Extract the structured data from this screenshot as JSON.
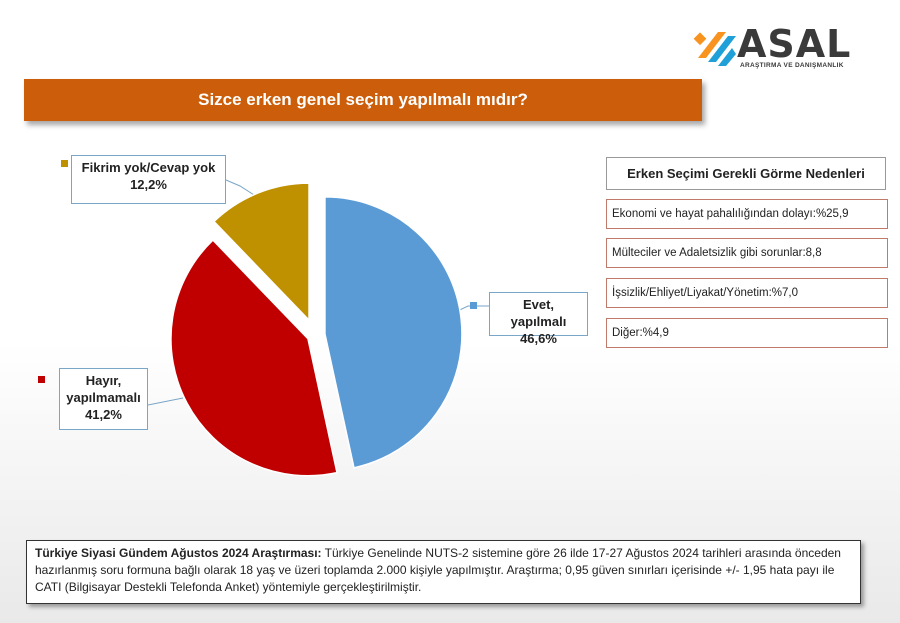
{
  "logo": {
    "word": "ASAL",
    "subtitle": "ARAŞTIRMA VE DANIŞMANLIK"
  },
  "question": "Sizce erken genel seçim yapılmalı mıdır?",
  "colors": {
    "evet": "#5b9bd5",
    "hayir": "#c00000",
    "fikrim": "#bf9000",
    "banner": "#cc5e0b"
  },
  "chart_data": {
    "type": "pie",
    "title": "Sizce erken genel seçim yapılmalı mıdır?",
    "slices": [
      {
        "label_line1": "Evet, yapılmalı",
        "label_line2": "",
        "value": 46.6,
        "value_text": "46,6%"
      },
      {
        "label_line1": "Hayır,",
        "label_line2": "yapılmamalı",
        "value": 41.2,
        "value_text": "41,2%"
      },
      {
        "label_line1": "Fikrim yok/Cevap yok",
        "label_line2": "",
        "value": 12.2,
        "value_text": "12,2%"
      }
    ]
  },
  "reasons": {
    "title": "Erken Seçimi Gerekli Görme Nedenleri",
    "items": [
      "Ekonomi  ve hayat pahalılığından dolayı:%25,9",
      "Mülteciler ve Adaletsizlik gibi sorunlar:8,8",
      "İşsizlik/Ehliyet/Liyakat/Yönetim:%7,0",
      "Diğer:%4,9"
    ]
  },
  "note": {
    "bold": "Türkiye Siyasi Gündem Ağustos 2024 Araştırması:",
    "text": " Türkiye Genelinde NUTS-2 sistemine göre 26 ilde 17-27 Ağustos 2024 tarihleri arasında önceden hazırlanmış soru formuna bağlı olarak 18 yaş ve üzeri toplamda 2.000 kişiyle yapılmıştır. Araştırma; 0,95 güven sınırları içerisinde +/- 1,95 hata payı ile CATI (Bilgisayar Destekli Telefonda Anket) yöntemiyle gerçekleştirilmiştir."
  }
}
